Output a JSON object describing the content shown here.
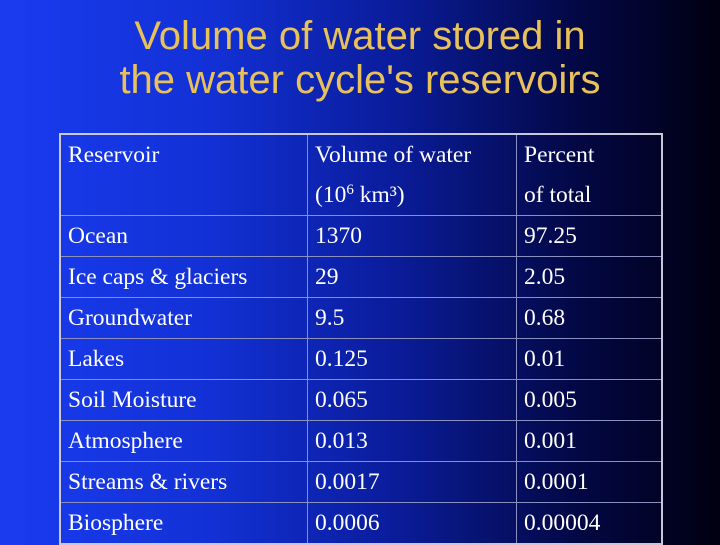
{
  "title": {
    "line1": "Volume of water stored in",
    "line2": "the water cycle's reservoirs"
  },
  "table": {
    "headers": {
      "reservoir": "Reservoir",
      "volume_line1": "Volume of water",
      "volume_paren_open": "(10",
      "volume_exp": "6",
      "volume_unit": " km³)",
      "percent_line1": "Percent",
      "percent_line2": "of total"
    },
    "rows": [
      {
        "reservoir": "Ocean",
        "volume": "1370",
        "percent": "97.25"
      },
      {
        "reservoir": "Ice caps & glaciers",
        "volume": "29",
        "percent": "2.05"
      },
      {
        "reservoir": "Groundwater",
        "volume": "9.5",
        "percent": "0.68"
      },
      {
        "reservoir": "Lakes",
        "volume": "0.125",
        "percent": "0.01"
      },
      {
        "reservoir": "Soil Moisture",
        "volume": "0.065",
        "percent": "0.005"
      },
      {
        "reservoir": "Atmosphere",
        "volume": "0.013",
        "percent": "0.001"
      },
      {
        "reservoir": "Streams & rivers",
        "volume": "0.0017",
        "percent": "0.0001"
      },
      {
        "reservoir": "Biosphere",
        "volume": "0.0006",
        "percent": "0.00004"
      }
    ]
  },
  "colors": {
    "title": "#e8c15a",
    "text": "#ffffff",
    "background_left": "#1a3cf0",
    "background_right": "#000010"
  }
}
